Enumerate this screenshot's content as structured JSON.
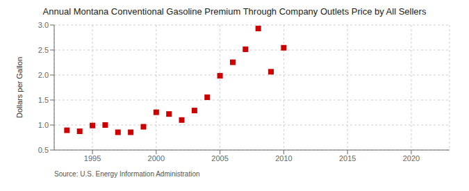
{
  "chart_data": {
    "type": "scatter",
    "title": "Annual Montana Conventional Gasoline Premium Through Company Outlets Price by All Sellers",
    "ylabel": "Dollars per Gallon",
    "source": "Source: U.S. Energy Information Administration",
    "x": [
      1993,
      1994,
      1995,
      1996,
      1997,
      1998,
      1999,
      2000,
      2001,
      2002,
      2003,
      2004,
      2005,
      2006,
      2007,
      2008,
      2009,
      2010
    ],
    "values": [
      0.895,
      0.875,
      0.99,
      1.0,
      0.855,
      0.855,
      0.965,
      1.255,
      1.22,
      1.1,
      1.29,
      1.555,
      1.985,
      2.255,
      2.515,
      2.93,
      2.065,
      2.545
    ],
    "color": "#cc0000",
    "marker": "square",
    "xlim": [
      1992,
      2023
    ],
    "ylim": [
      0.5,
      3.0
    ],
    "xticks": [
      1995,
      2000,
      2005,
      2010,
      2015,
      2020
    ],
    "yticks": [
      0.5,
      {
        "value": 1.0,
        "label": "1.0"
      },
      1.5,
      {
        "value": 2.0,
        "label": "2.0"
      },
      2.5,
      {
        "value": 3.0,
        "label": "3.0"
      }
    ],
    "grid": true
  }
}
